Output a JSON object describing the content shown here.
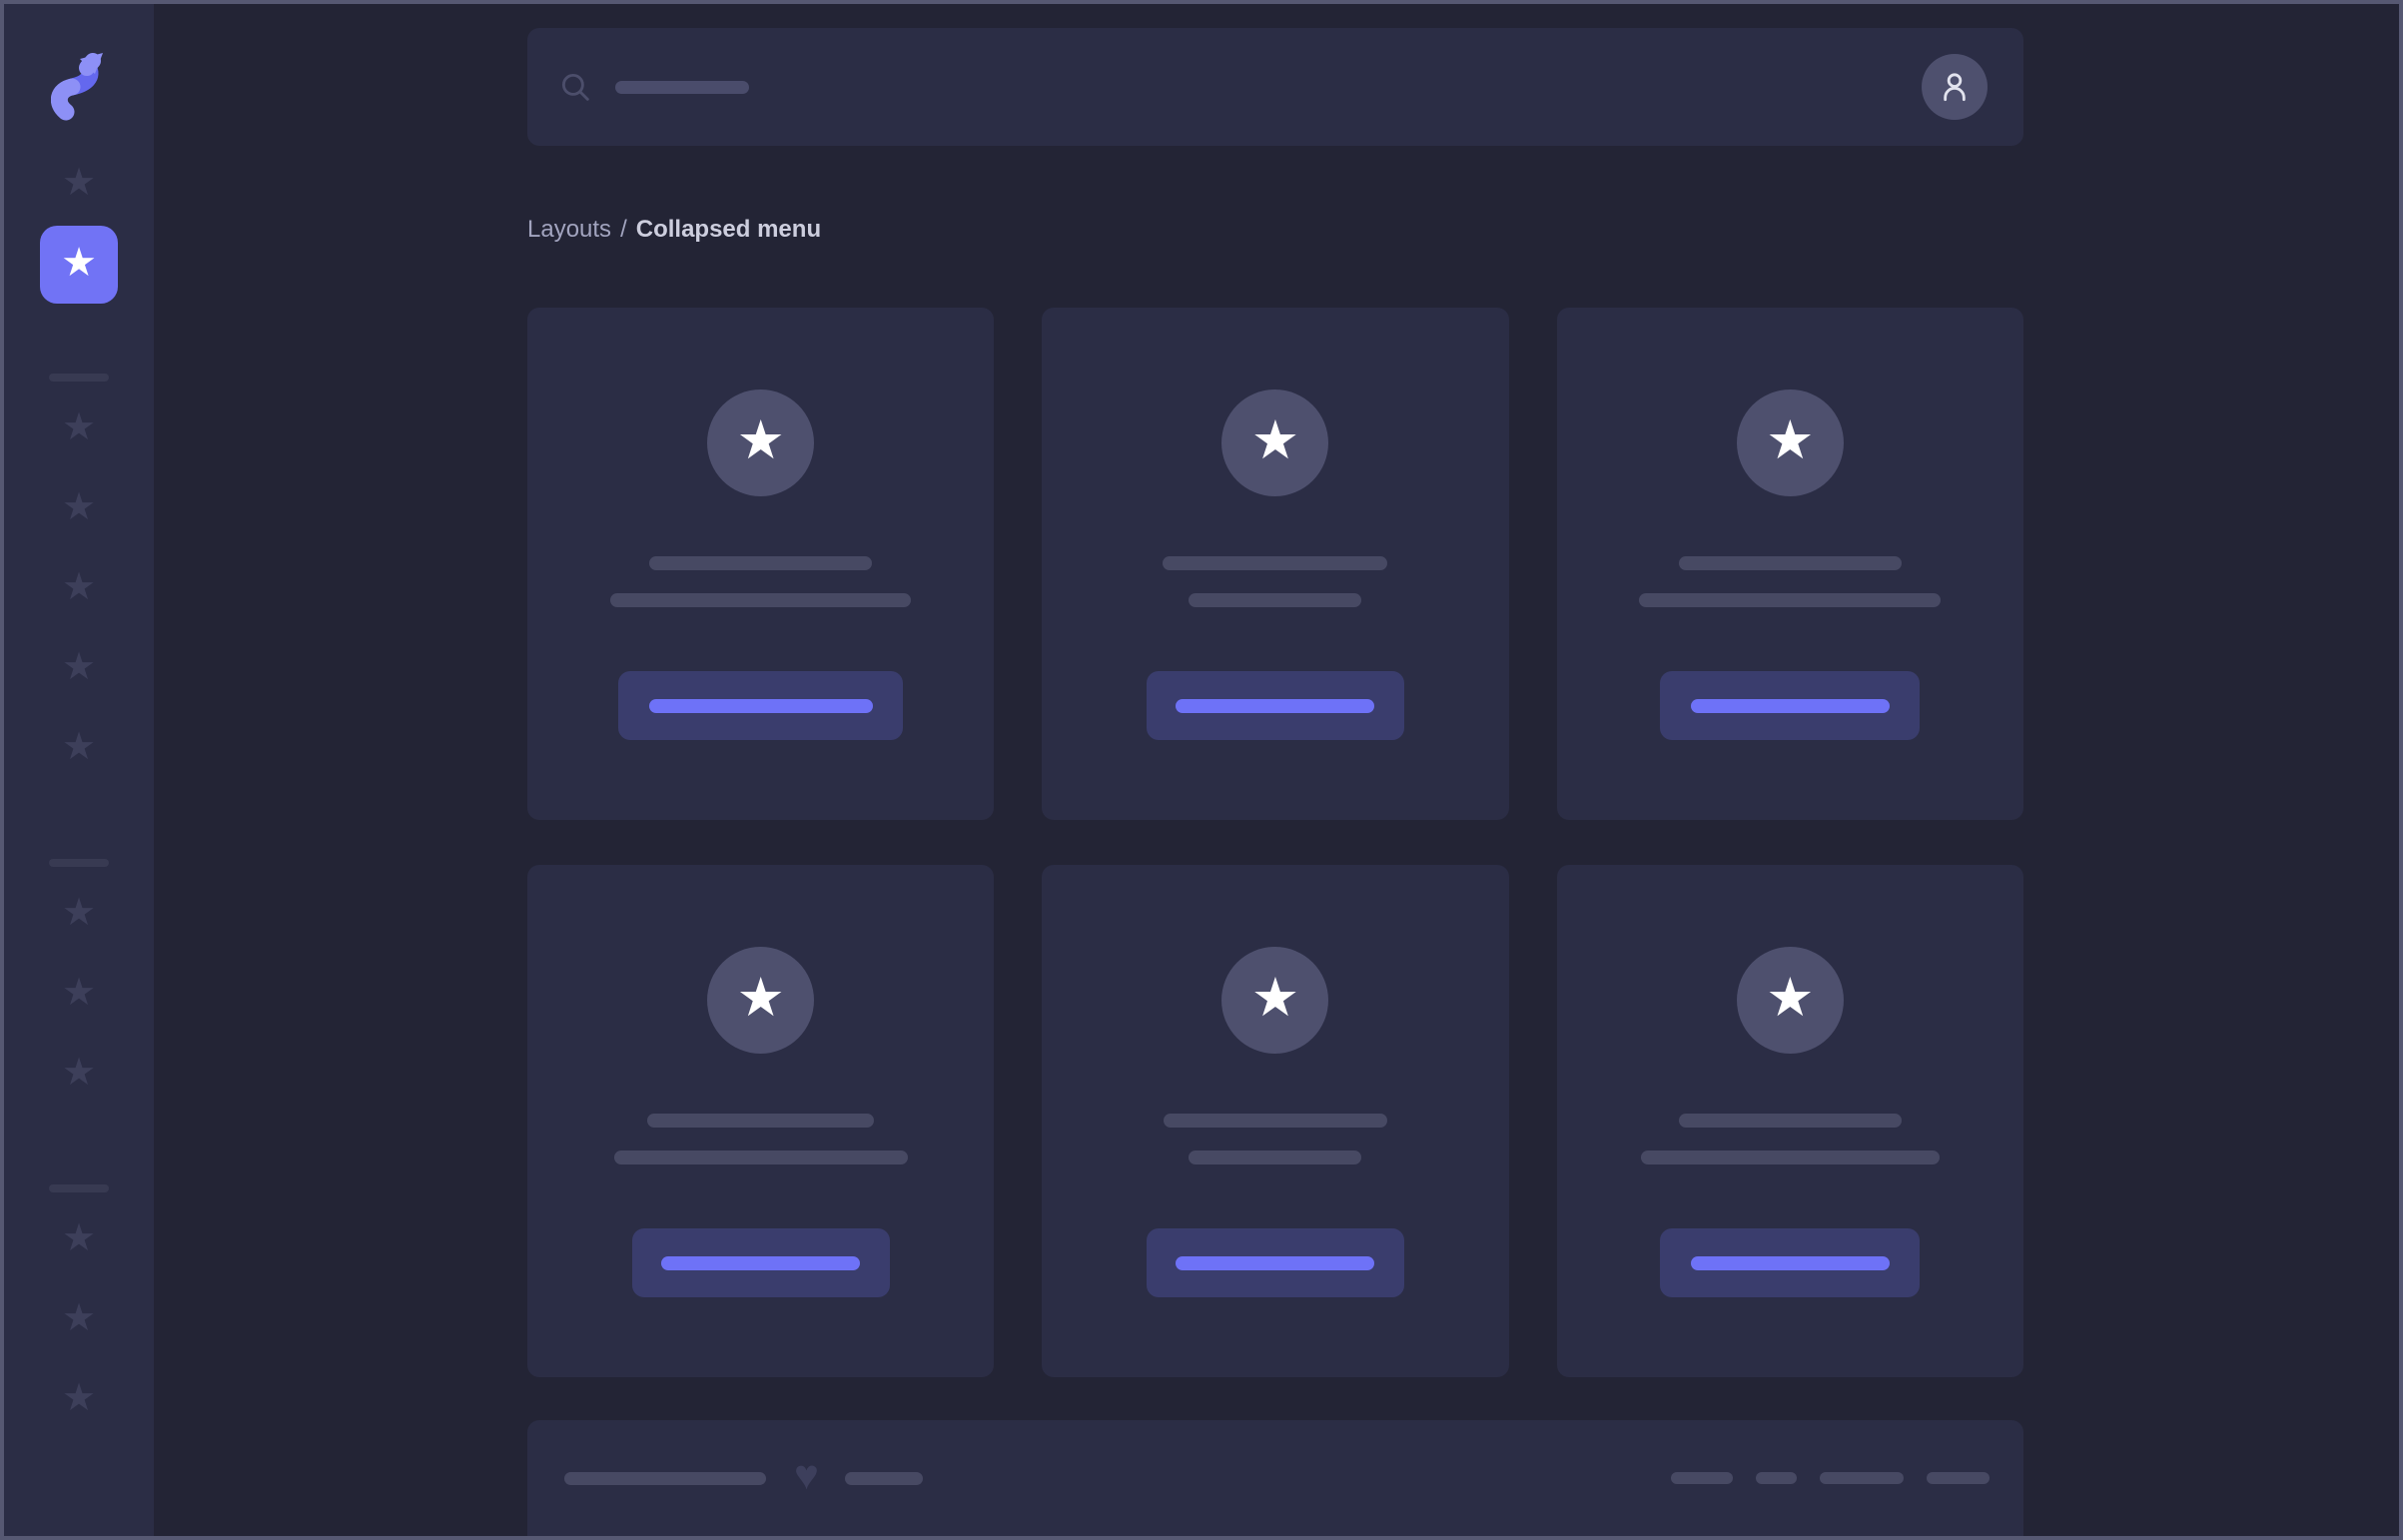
{
  "meta": {
    "view_title": "Collapsed menu"
  },
  "colors": {
    "frame": "#565872",
    "sidebar_bg": "#2b2d45",
    "main_bg": "#232435",
    "card_bg": "#2b2d45",
    "circle_bg": "#4e506e",
    "placeholder": "#474963",
    "search_ph": "#4a4c6b",
    "divider": "#383a52",
    "muted_icon": "#3d3f5a",
    "heart": "#3d3f5c",
    "accent": "#7173f5",
    "button_bg": "#3a3d6d",
    "button_accent": "#6e72f7",
    "crumb": "#a2a4bf",
    "crumb_current": "#cdcede",
    "logo_light": "#8d90f6",
    "logo_dark": "#6468ee"
  },
  "icons": {
    "logo": "s-arrow-logo",
    "star": "★",
    "heart": "♥",
    "search": "magnifier",
    "user": "person-outline"
  },
  "breadcrumb": {
    "parent": "Layouts",
    "separator": "/",
    "current": "Collapsed menu"
  },
  "topbar": {
    "search_placeholder_w": 134
  },
  "sidebar": {
    "items": [
      {
        "type": "link"
      },
      {
        "type": "link",
        "active": true
      },
      {
        "type": "divider"
      },
      {
        "type": "link"
      },
      {
        "type": "link"
      },
      {
        "type": "link"
      },
      {
        "type": "link"
      },
      {
        "type": "link"
      },
      {
        "type": "divider"
      },
      {
        "type": "link"
      },
      {
        "type": "link"
      },
      {
        "type": "link"
      },
      {
        "type": "divider"
      },
      {
        "type": "link"
      },
      {
        "type": "link"
      },
      {
        "type": "link"
      }
    ]
  },
  "cards": [
    {
      "line1_w": 223,
      "line2_w": 301,
      "button_w": 285,
      "button_line_w": 224
    },
    {
      "line1_w": 225,
      "line2_w": 173,
      "button_w": 258,
      "button_line_w": 199
    },
    {
      "line1_w": 223,
      "line2_w": 302,
      "button_w": 260,
      "button_line_w": 199
    },
    {
      "line1_w": 227,
      "line2_w": 294,
      "button_w": 258,
      "button_line_w": 199
    },
    {
      "line1_w": 224,
      "line2_w": 173,
      "button_w": 258,
      "button_line_w": 199
    },
    {
      "line1_w": 223,
      "line2_w": 299,
      "button_w": 260,
      "button_line_w": 199
    }
  ],
  "footer": {
    "left_line_w": 202,
    "right_line_w": 78,
    "right_dash_ws": [
      62,
      41,
      84,
      63
    ]
  }
}
